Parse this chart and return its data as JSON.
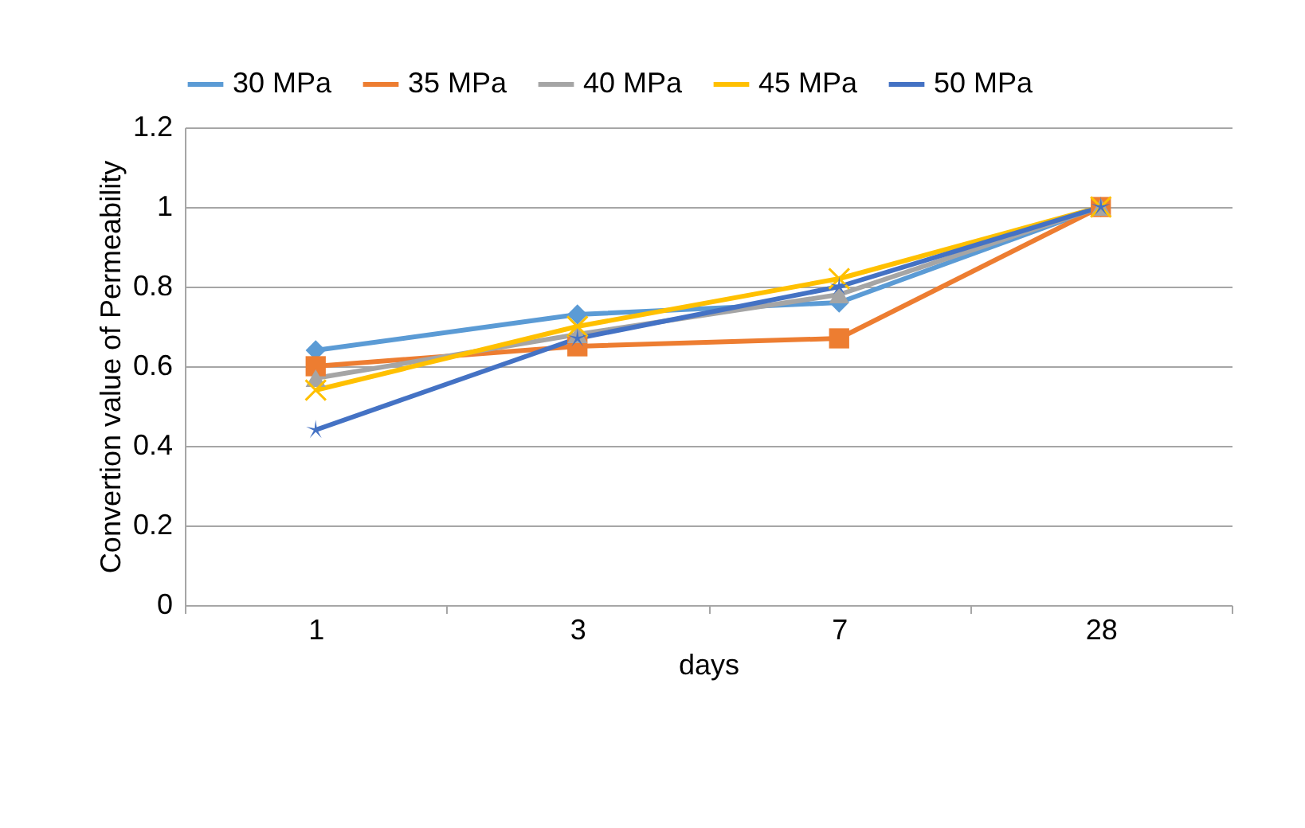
{
  "chart_data": {
    "type": "line",
    "xlabel": "days",
    "ylabel": "Convertion value of Permeability",
    "categories": [
      "1",
      "3",
      "7",
      "28"
    ],
    "series": [
      {
        "name": "30 MPa",
        "color": "#5b9bd5",
        "marker": "diamond",
        "values": [
          0.64,
          0.73,
          0.76,
          1
        ]
      },
      {
        "name": "35 MPa",
        "color": "#ed7d31",
        "marker": "square",
        "values": [
          0.6,
          0.65,
          0.67,
          1
        ]
      },
      {
        "name": "40 MPa",
        "color": "#a5a5a5",
        "marker": "triangle",
        "values": [
          0.57,
          0.68,
          0.78,
          1
        ]
      },
      {
        "name": "45 MPa",
        "color": "#ffc000",
        "marker": "cross",
        "values": [
          0.54,
          0.7,
          0.82,
          1
        ]
      },
      {
        "name": "50 MPa",
        "color": "#4472c4",
        "marker": "star",
        "values": [
          0.44,
          0.67,
          0.8,
          1
        ]
      }
    ],
    "ylim": [
      0,
      1.2
    ],
    "yticks": [
      0,
      0.2,
      0.4,
      0.6,
      0.8,
      1,
      1.2
    ],
    "grid": "y",
    "legend": "top",
    "line_style": "solid"
  }
}
